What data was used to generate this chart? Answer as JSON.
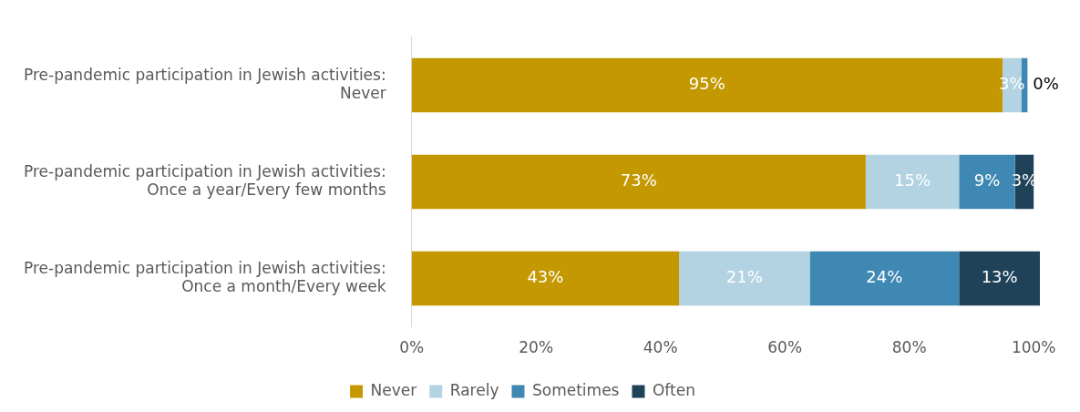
{
  "chart_data": {
    "type": "bar",
    "orientation": "horizontal",
    "stacked": true,
    "legend": "bottom",
    "grid": false,
    "categories": [
      "Pre-pandemic participation in Jewish activities:\nNever",
      "Pre-pandemic participation in Jewish activities:\nOnce a year/Every few months",
      "Pre-pandemic participation in Jewish activities:\nOnce a month/Every week"
    ],
    "series": [
      {
        "name": "Never",
        "color": "#c39800",
        "values": [
          95,
          73,
          43
        ],
        "value_labels": [
          "95%",
          "73%",
          "43%"
        ]
      },
      {
        "name": "Rarely",
        "color": "#b3d3e3",
        "values": [
          3,
          15,
          21
        ],
        "value_labels": [
          "3%",
          "15%",
          "21%"
        ]
      },
      {
        "name": "Sometimes",
        "color": "#3f88b3",
        "values": [
          1,
          9,
          24
        ],
        "value_labels": [
          null,
          "9%",
          "24%"
        ]
      },
      {
        "name": "Often",
        "color": "#1f4259",
        "values": [
          0,
          3,
          13
        ],
        "value_labels": [
          "0%",
          "3%",
          "13%"
        ]
      }
    ],
    "xlim": [
      0,
      101
    ],
    "xticks": [
      {
        "value": 0,
        "label": "0%"
      },
      {
        "value": 20,
        "label": "20%"
      },
      {
        "value": 40,
        "label": "40%"
      },
      {
        "value": 60,
        "label": "60%"
      },
      {
        "value": 80,
        "label": "80%"
      },
      {
        "value": 100,
        "label": "100%"
      }
    ]
  }
}
